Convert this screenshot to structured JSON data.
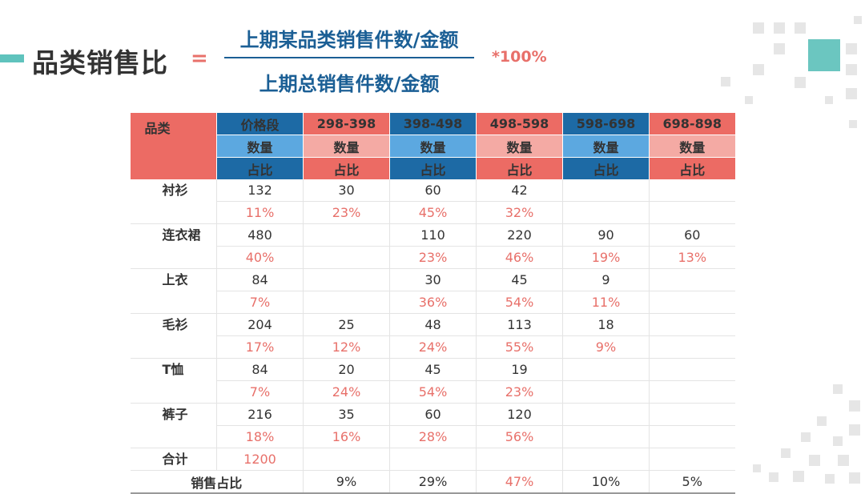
{
  "title": "品类销售比",
  "equals": "=",
  "formula": {
    "numerator": "上期某品类销售件数/金额",
    "denominator": "上期总销售件数/金额",
    "multiplier": "*100%"
  },
  "table": {
    "header_category": "品类",
    "header_price": "价格段",
    "ranges": [
      "298-398",
      "398-498",
      "498-598",
      "598-698",
      "698-898"
    ],
    "qty_label": "数量",
    "ratio_label": "占比",
    "rows": [
      {
        "name": "衬衫",
        "qty": [
          "132",
          "30",
          "60",
          "42",
          "",
          ""
        ],
        "pct": [
          "11%",
          "23%",
          "45%",
          "32%",
          "",
          ""
        ]
      },
      {
        "name": "连衣裙",
        "qty": [
          "480",
          "",
          "110",
          "220",
          "90",
          "60"
        ],
        "pct": [
          "40%",
          "",
          "23%",
          "46%",
          "19%",
          "13%"
        ]
      },
      {
        "name": "上衣",
        "qty": [
          "84",
          "",
          "30",
          "45",
          "9",
          ""
        ],
        "pct": [
          "7%",
          "",
          "36%",
          "54%",
          "11%",
          ""
        ]
      },
      {
        "name": "毛衫",
        "qty": [
          "204",
          "25",
          "48",
          "113",
          "18",
          ""
        ],
        "pct": [
          "17%",
          "12%",
          "24%",
          "55%",
          "9%",
          ""
        ]
      },
      {
        "name": "T恤",
        "qty": [
          "84",
          "20",
          "45",
          "19",
          "",
          ""
        ],
        "pct": [
          "7%",
          "24%",
          "54%",
          "23%",
          "",
          ""
        ]
      },
      {
        "name": "裤子",
        "qty": [
          "216",
          "35",
          "60",
          "120",
          "",
          ""
        ],
        "pct": [
          "18%",
          "16%",
          "28%",
          "56%",
          "",
          ""
        ]
      }
    ],
    "total_label": "合计",
    "total_value": "1200",
    "sales_ratio_label": "销售占比",
    "sales_ratio": [
      "9%",
      "29%",
      "47%",
      "10%",
      "5%"
    ]
  }
}
